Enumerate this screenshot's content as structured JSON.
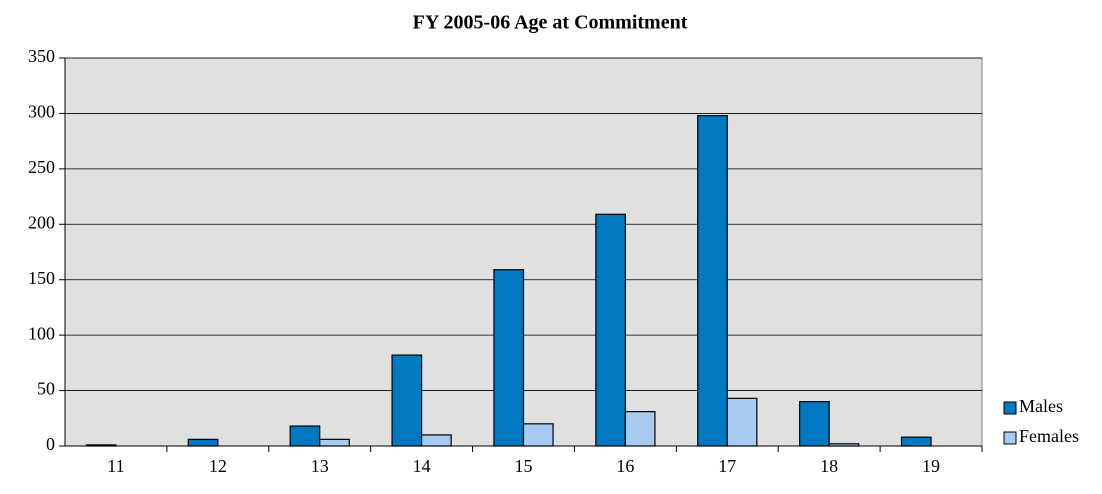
{
  "chart_data": {
    "type": "bar",
    "title": "FY 2005-06  Age at Commitment",
    "categories": [
      "11",
      "12",
      "13",
      "14",
      "15",
      "16",
      "17",
      "18",
      "19"
    ],
    "series": [
      {
        "name": "Males",
        "color": "#0079c1",
        "values": [
          1,
          6,
          18,
          82,
          159,
          209,
          298,
          40,
          8
        ]
      },
      {
        "name": "Females",
        "color": "#a6caf0",
        "values": [
          0,
          0,
          6,
          10,
          20,
          31,
          43,
          2,
          0
        ]
      }
    ],
    "ylim": [
      0,
      350
    ],
    "yticks": [
      0,
      50,
      100,
      150,
      200,
      250,
      300,
      350
    ],
    "grid": true,
    "legend": "right"
  }
}
